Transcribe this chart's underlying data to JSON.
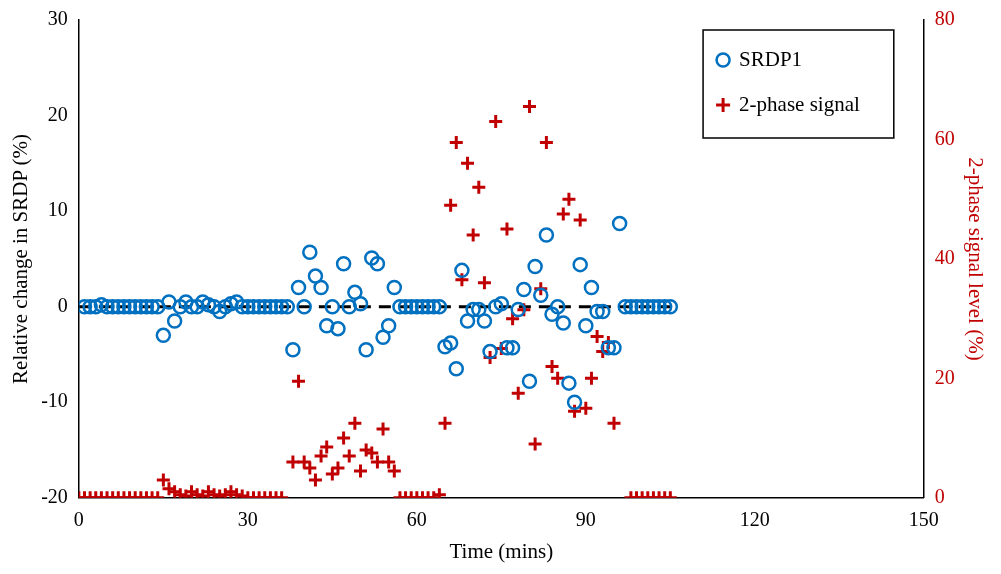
{
  "chart_data": {
    "type": "scatter",
    "xlabel": "Time (mins)",
    "ylabel": "Relative change in SRDP (%)",
    "y2label": "2-phase signal level (%)",
    "xlim": [
      0,
      150
    ],
    "xticks": [
      0,
      30,
      60,
      90,
      120,
      150
    ],
    "ylim": [
      -20,
      30
    ],
    "yticks": [
      -20,
      -10,
      0,
      10,
      20,
      30
    ],
    "y2lim": [
      0,
      80
    ],
    "y2ticks": [
      0,
      20,
      40,
      60,
      80
    ],
    "grid": false,
    "legend": "top right",
    "series": [
      {
        "name": "SRDP1",
        "marker": "circle",
        "color": "#0070c0",
        "x": [
          1,
          2,
          3,
          4,
          5,
          6,
          7,
          8,
          9,
          10,
          11,
          12,
          13,
          14,
          15,
          16,
          17,
          18,
          19,
          20,
          21,
          22,
          23,
          24,
          25,
          26,
          27,
          28,
          29,
          30,
          31,
          32,
          33,
          34,
          35,
          36,
          37,
          38,
          39,
          40,
          41,
          42,
          43,
          44,
          45,
          46,
          47,
          48,
          49,
          50,
          51,
          52,
          53,
          54,
          55,
          56,
          57,
          58,
          59,
          60,
          61,
          62,
          63,
          64,
          65,
          66,
          67,
          68,
          69,
          70,
          71,
          72,
          73,
          74,
          75,
          76,
          77,
          78,
          79,
          80,
          81,
          82,
          83,
          84,
          85,
          86,
          87,
          88,
          89,
          90,
          91,
          92,
          93,
          94,
          95,
          96,
          97,
          98,
          99,
          100,
          101,
          102,
          103,
          104,
          105
        ],
        "values": [
          0,
          0,
          0,
          0.2,
          0,
          0,
          0,
          0,
          0,
          0,
          0,
          0,
          0,
          0,
          -3,
          0.5,
          -1.5,
          0,
          0.5,
          0,
          0,
          0.5,
          0.2,
          0,
          -0.5,
          0,
          0.3,
          0.5,
          0,
          0,
          0,
          0,
          0,
          0,
          0,
          0,
          0,
          -4.5,
          2,
          0,
          5.7,
          3.2,
          2,
          -2,
          0,
          -2.3,
          4.5,
          0,
          1.5,
          0.3,
          -4.5,
          5.1,
          4.5,
          -3.2,
          -2,
          2,
          0,
          0,
          0,
          0,
          0,
          0,
          0,
          0,
          -4.2,
          -3.8,
          -6.5,
          3.8,
          -1.5,
          -0.3,
          -0.3,
          -1.5,
          -4.7,
          0,
          0.3,
          -4.3,
          -4.3,
          -0.3,
          1.8,
          -7.8,
          4.2,
          1.2,
          7.5,
          -0.8,
          0,
          -1.7,
          -8,
          -10,
          4.4,
          -2,
          2,
          -0.5,
          -0.5,
          -4.3,
          -4.3,
          8.7,
          0,
          0,
          0,
          0,
          0,
          0,
          0,
          0,
          0
        ]
      },
      {
        "name": "2-phase signal",
        "marker": "cross",
        "axis": "y2",
        "color": "#c00000",
        "x": [
          0,
          1,
          2,
          3,
          4,
          5,
          6,
          7,
          8,
          9,
          10,
          11,
          12,
          13,
          14,
          15,
          16,
          17,
          18,
          19,
          20,
          21,
          22,
          23,
          24,
          25,
          26,
          27,
          28,
          29,
          30,
          31,
          32,
          33,
          34,
          35,
          36,
          38,
          39,
          40,
          41,
          42,
          43,
          44,
          45,
          46,
          47,
          48,
          49,
          50,
          51,
          52,
          53,
          54,
          55,
          56,
          57,
          58,
          59,
          60,
          61,
          62,
          63,
          64,
          65,
          66,
          67,
          68,
          69,
          70,
          71,
          72,
          73,
          74,
          75,
          76,
          77,
          78,
          79,
          80,
          81,
          82,
          83,
          84,
          85,
          86,
          87,
          88,
          89,
          90,
          91,
          92,
          93,
          94,
          95,
          98,
          99,
          100,
          101,
          102,
          103,
          104,
          105
        ],
        "values": [
          0,
          0,
          0,
          0,
          0,
          0,
          0,
          0,
          0,
          0,
          0,
          0,
          0,
          0,
          0,
          3,
          1.5,
          1,
          0.5,
          0.3,
          1,
          0.5,
          0.3,
          1,
          0.5,
          0.3,
          0.5,
          1,
          0.5,
          0.3,
          0,
          0,
          0,
          0,
          0,
          0,
          0,
          6,
          19.5,
          6,
          5,
          3,
          7,
          8.5,
          4,
          5,
          10,
          7,
          12.5,
          4.5,
          8,
          7.5,
          6,
          11.5,
          6,
          4.5,
          0,
          0,
          0,
          0,
          0,
          0,
          0,
          0.5,
          12.5,
          49,
          59.5,
          36.5,
          56,
          44,
          52,
          36,
          23.5,
          63,
          25,
          45,
          30,
          17.5,
          31.5,
          65.5,
          9,
          35,
          59.5,
          22,
          20,
          47.5,
          50,
          14.5,
          46.5,
          15,
          20,
          27,
          24.5,
          26,
          12.5,
          0,
          0,
          0,
          0,
          0,
          0,
          0,
          0
        ]
      },
      {
        "type": "line",
        "marker": "none",
        "line_style": "dashed",
        "color": "#000000",
        "x": [
          0,
          105
        ],
        "values": [
          0,
          0
        ]
      }
    ]
  }
}
